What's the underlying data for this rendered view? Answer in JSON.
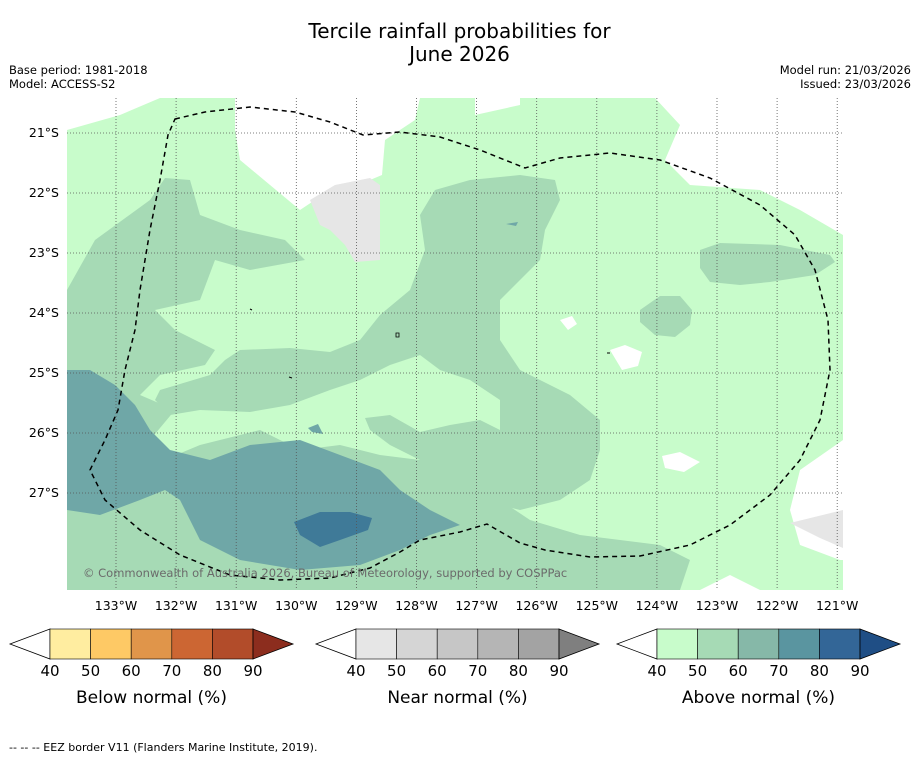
{
  "header": {
    "title_line1": "Tercile rainfall probabilities for",
    "title_line2": "June 2026",
    "base_period": "Base period: 1981-2018",
    "model": "Model: ACCESS-S2",
    "model_run": "Model run: 21/03/2026",
    "issued": "Issued: 23/03/2026"
  },
  "map": {
    "lon_labels": [
      "133°W",
      "132°W",
      "131°W",
      "130°W",
      "129°W",
      "128°W",
      "127°W",
      "126°W",
      "125°W",
      "124°W",
      "123°W",
      "122°W",
      "121°W"
    ],
    "lat_labels": [
      "21°S",
      "22°S",
      "23°S",
      "24°S",
      "25°S",
      "26°S",
      "27°S"
    ],
    "copyright": "© Commonwealth of Australia 2026, Bureau of Meteorology, supported by COSPPac"
  },
  "colorbars": [
    {
      "name": "below",
      "label": "Below normal (%)",
      "ticks": [
        "40",
        "50",
        "60",
        "70",
        "80",
        "90"
      ],
      "colors": [
        "#ffeda0",
        "#fec965",
        "#e0954a",
        "#cc6633",
        "#b24c2a",
        "#8c2d1e"
      ]
    },
    {
      "name": "near",
      "label": "Near normal (%)",
      "ticks": [
        "40",
        "50",
        "60",
        "70",
        "80",
        "90"
      ],
      "colors": [
        "#e6e6e6",
        "#d5d5d5",
        "#c6c6c6",
        "#b5b5b5",
        "#a3a3a3",
        "#7f7f7f"
      ]
    },
    {
      "name": "above",
      "label": "Above normal (%)",
      "ticks": [
        "40",
        "50",
        "60",
        "70",
        "80",
        "90"
      ],
      "colors": [
        "#c8fccb",
        "#a6dab5",
        "#86b8a8",
        "#5a95a0",
        "#336697",
        "#1f4e85"
      ]
    }
  ],
  "footer": {
    "eez_note": "--  --  -- EEZ border V11 (Flanders Marine Institute, 2019)."
  }
}
